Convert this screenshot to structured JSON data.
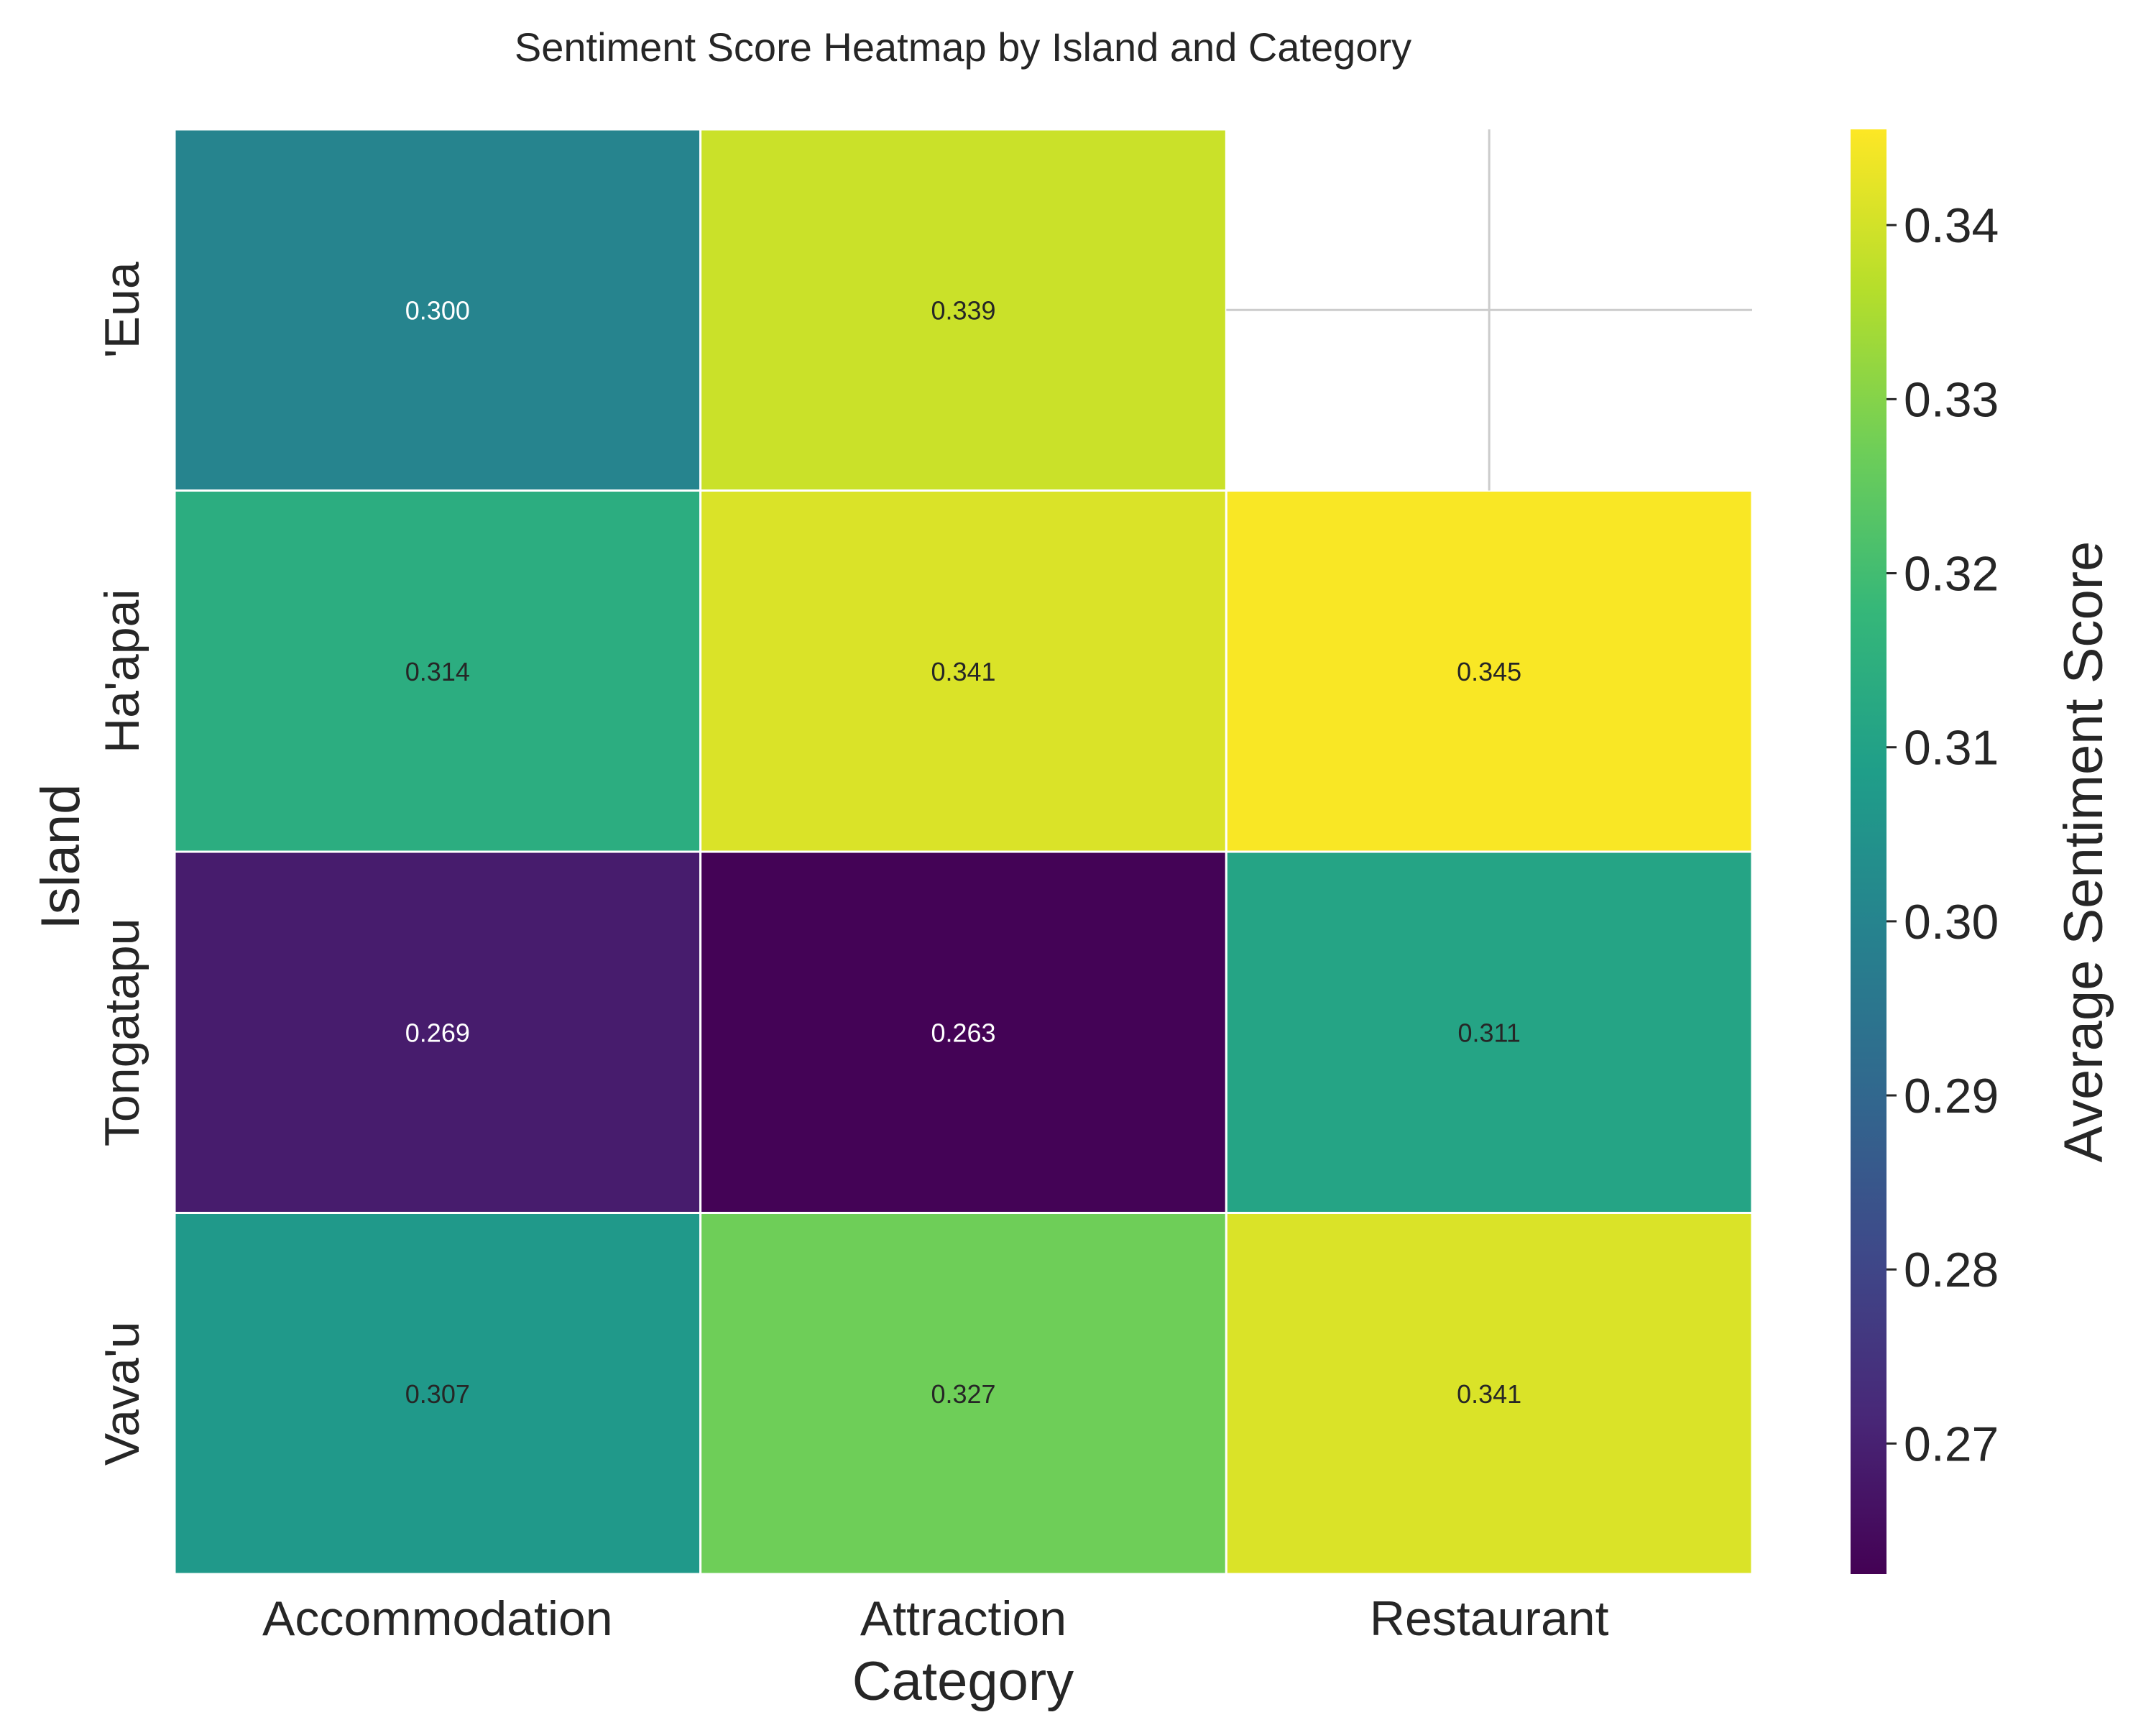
{
  "chart_data": {
    "type": "heatmap",
    "title": "Sentiment Score Heatmap by Island and Category",
    "xlabel": "Category",
    "ylabel": "Island",
    "x_categories": [
      "Accommodation",
      "Attraction",
      "Restaurant"
    ],
    "y_categories": [
      "'Eua",
      "Ha'apai",
      "Tongatapu",
      "Vava'u"
    ],
    "values": [
      [
        0.3,
        0.339,
        null
      ],
      [
        0.314,
        0.341,
        0.345
      ],
      [
        0.269,
        0.263,
        0.311
      ],
      [
        0.307,
        0.327,
        0.341
      ]
    ],
    "value_format": "3 decimals",
    "colorbar": {
      "label": "Average Sentiment Score",
      "min": 0.2625,
      "max": 0.3455,
      "ticks": [
        "0.27",
        "0.28",
        "0.29",
        "0.30",
        "0.31",
        "0.32",
        "0.33",
        "0.34"
      ],
      "colormap": "viridis"
    },
    "missing_cell_style": "white with light gray grid lines",
    "colors": {
      "cell_border": "#ffffff",
      "grid": "#cccccc",
      "dark_text": "#262626",
      "light_text": "#ffffff"
    }
  }
}
